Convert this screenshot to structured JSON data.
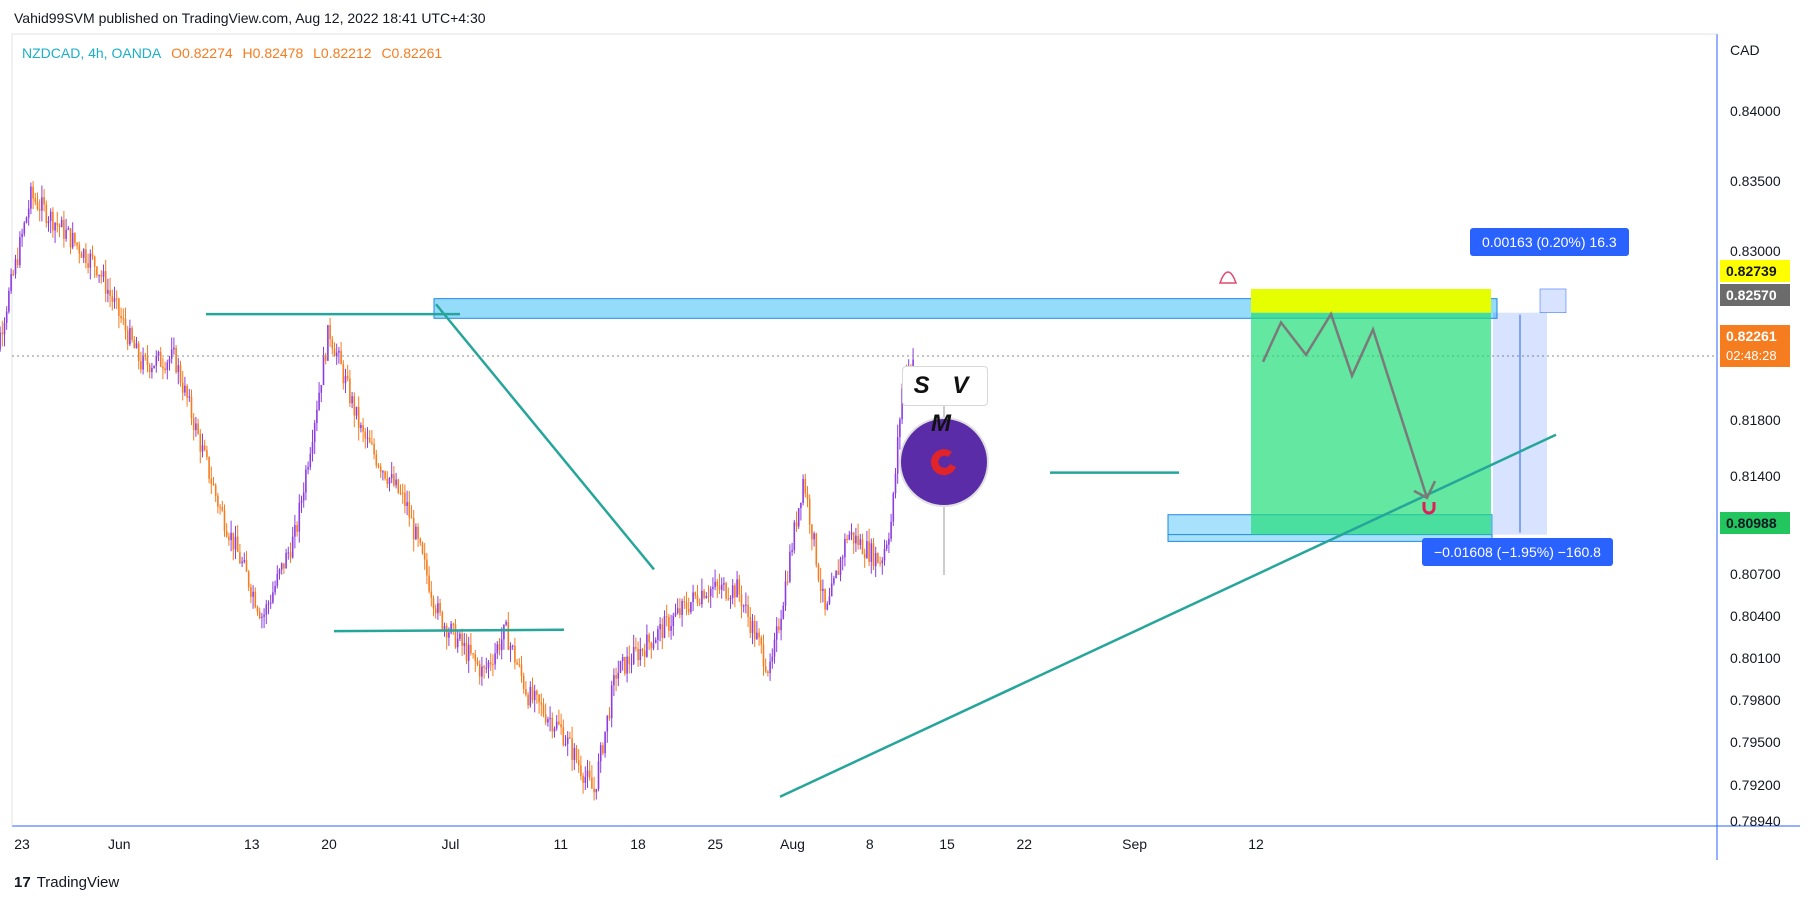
{
  "header": {
    "publisher": "Vahid99SVM published on TradingView.com, Aug 12, 2022 18:41 UTC+4:30"
  },
  "legend": {
    "symbol": "NZDCAD, 4h, OANDA",
    "open": "O0.82274",
    "high": "H0.82478",
    "low": "L0.82212",
    "close": "C0.82261"
  },
  "colors": {
    "up": "#8b3de0",
    "down": "#f57c1f",
    "accent": "#2962ff",
    "trend": "#26a69a",
    "zone": "#4fc3f7",
    "profit": "#22dd77",
    "target": "#e6ff00"
  },
  "chart_data": {
    "type": "candlestick",
    "symbol": "NZDCAD",
    "timeframe": "4h",
    "currency": "CAD",
    "ylim": [
      0.7894,
      0.8415
    ],
    "y_ticks": [
      "0.84000",
      "0.83500",
      "0.83000",
      "0.82570",
      "0.82261",
      "0.81800",
      "0.81400",
      "0.80988",
      "0.80700",
      "0.80400",
      "0.80100",
      "0.79800",
      "0.79500",
      "0.79200",
      "0.78940"
    ],
    "x_ticks": [
      "23",
      "Jun",
      "13",
      "20",
      "Jul",
      "11",
      "18",
      "25",
      "Aug",
      "8",
      "15",
      "22",
      "Sep",
      "12"
    ],
    "price_path": [
      [
        "2022-05-20",
        0.82
      ],
      [
        "2022-05-24",
        0.834
      ],
      [
        "2022-05-30",
        0.829
      ],
      [
        "2022-06-03",
        0.822
      ],
      [
        "2022-06-06",
        0.8225
      ],
      [
        "2022-06-10",
        0.812
      ],
      [
        "2022-06-14",
        0.804
      ],
      [
        "2022-06-17",
        0.81
      ],
      [
        "2022-06-20",
        0.8245
      ],
      [
        "2022-06-23",
        0.817
      ],
      [
        "2022-06-27",
        0.812
      ],
      [
        "2022-06-30",
        0.804
      ],
      [
        "2022-07-04",
        0.8
      ],
      [
        "2022-07-06",
        0.803
      ],
      [
        "2022-07-08",
        0.7985
      ],
      [
        "2022-07-11",
        0.796
      ],
      [
        "2022-07-14",
        0.7915
      ],
      [
        "2022-07-16",
        0.8
      ],
      [
        "2022-07-20",
        0.803
      ],
      [
        "2022-07-24",
        0.806
      ],
      [
        "2022-07-27",
        0.806
      ],
      [
        "2022-07-30",
        0.8
      ],
      [
        "2022-08-02",
        0.814
      ],
      [
        "2022-08-04",
        0.804
      ],
      [
        "2022-08-06",
        0.81
      ],
      [
        "2022-08-09",
        0.808
      ],
      [
        "2022-08-10",
        0.811
      ],
      [
        "2022-08-11",
        0.821
      ],
      [
        "2022-08-12",
        0.8226
      ]
    ],
    "last_price": {
      "value": "0.82261",
      "countdown": "02:48:28"
    },
    "levels": [
      {
        "label": "0.82739",
        "value": 0.82739,
        "kind": "target"
      },
      {
        "label": "0.82570",
        "value": 0.8257,
        "kind": "entry"
      },
      {
        "label": "0.80988",
        "value": 0.80988,
        "kind": "take-profit"
      }
    ],
    "measures": [
      {
        "label": "0.00163 (0.20%) 16.3"
      },
      {
        "label": "−0.01608 (−1.95%) −160.8"
      }
    ],
    "annotation": "S V M"
  },
  "footer": {
    "brand": "TradingView",
    "mark": "17"
  }
}
